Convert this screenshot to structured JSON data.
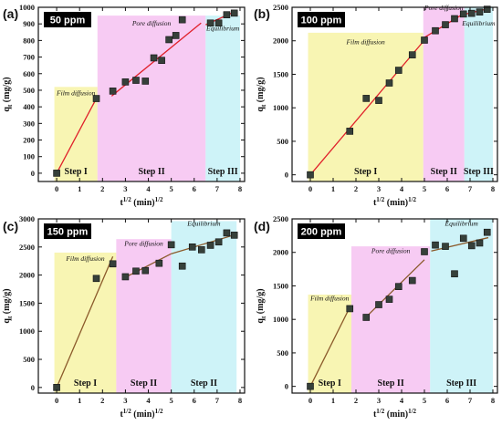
{
  "chart_data": [
    {
      "type": "scatter",
      "panel_label": "(a)",
      "conc_label": "50 ppm",
      "xlabel": "t",
      "xlabel_sup1": "1/2",
      "xlabel_unit": " (min)",
      "xlabel_sup2": "1/2",
      "ylabel": "q",
      "ylabel_sub": "t",
      "ylabel_unit": " (mg/g)",
      "xlim": [
        -0.8,
        8.2
      ],
      "ylim": [
        -50,
        1000
      ],
      "xticks": [
        0,
        1,
        2,
        3,
        4,
        5,
        6,
        7,
        8
      ],
      "yticks": [
        0,
        100,
        200,
        300,
        400,
        500,
        600,
        700,
        800,
        900,
        1000
      ],
      "regions": [
        {
          "x0": -0.1,
          "x1": 1.78,
          "y0": -50,
          "y1": 520,
          "color": "#f7f3a6",
          "step": "Step I",
          "note": "Film diffusion",
          "note_y": 470
        },
        {
          "x0": 1.78,
          "x1": 6.5,
          "y0": -50,
          "y1": 950,
          "color": "#f6c2f1",
          "step": "Step II",
          "note": "Pore diffusion",
          "note_y": 890
        },
        {
          "x0": 6.5,
          "x1": 8.0,
          "y0": -50,
          "y1": 950,
          "color": "#c6f1f7",
          "step": "Step III",
          "note": "Equilibrium",
          "note_y": 860
        }
      ],
      "points": [
        {
          "x": 0,
          "y": 0
        },
        {
          "x": 1.73,
          "y": 450
        },
        {
          "x": 2.45,
          "y": 495
        },
        {
          "x": 3.0,
          "y": 550
        },
        {
          "x": 3.46,
          "y": 560
        },
        {
          "x": 3.87,
          "y": 555
        },
        {
          "x": 4.24,
          "y": 695
        },
        {
          "x": 4.58,
          "y": 680
        },
        {
          "x": 4.9,
          "y": 805
        },
        {
          "x": 5.2,
          "y": 830
        },
        {
          "x": 5.48,
          "y": 925
        },
        {
          "x": 6.71,
          "y": 905
        },
        {
          "x": 7.07,
          "y": 905
        },
        {
          "x": 7.42,
          "y": 955
        },
        {
          "x": 7.75,
          "y": 965
        }
      ],
      "fit_lines": [
        {
          "x": [
            0,
            1.73
          ],
          "y": [
            0,
            450
          ]
        },
        {
          "x": [
            2.4,
            6.3
          ],
          "y": [
            465,
            905
          ]
        },
        {
          "x": [
            6.5,
            7.8
          ],
          "y": [
            895,
            975
          ]
        }
      ],
      "line_color": "#e0202a"
    },
    {
      "type": "scatter",
      "panel_label": "(b)",
      "conc_label": "100 ppm",
      "xlabel": "t",
      "xlabel_sup1": "1/2",
      "xlabel_unit": " (min)",
      "xlabel_sup2": "1/2",
      "ylabel": "q",
      "ylabel_sub": "t",
      "ylabel_unit": " (mg/g)",
      "xlim": [
        -0.8,
        8.2
      ],
      "ylim": [
        -100,
        2500
      ],
      "xticks": [
        0,
        1,
        2,
        3,
        4,
        5,
        6,
        7,
        8
      ],
      "yticks": [
        0,
        500,
        1000,
        1500,
        2000,
        2500
      ],
      "regions": [
        {
          "x0": -0.1,
          "x1": 4.95,
          "y0": -100,
          "y1": 2120,
          "color": "#f7f3a6",
          "step": "Step I",
          "note": "Film diffusion",
          "note_y": 1950
        },
        {
          "x0": 4.95,
          "x1": 6.75,
          "y0": -100,
          "y1": 2510,
          "color": "#f6c2f1",
          "step": "Step II",
          "note": "Pore diffusion",
          "note_y": 2460
        },
        {
          "x0": 6.75,
          "x1": 8.0,
          "y0": -100,
          "y1": 2510,
          "color": "#c6f1f7",
          "step": "Step III",
          "note": "Equilibrium",
          "note_y": 2230
        }
      ],
      "points": [
        {
          "x": 0,
          "y": 0
        },
        {
          "x": 1.73,
          "y": 650
        },
        {
          "x": 2.45,
          "y": 1140
        },
        {
          "x": 3.0,
          "y": 1110
        },
        {
          "x": 3.46,
          "y": 1370
        },
        {
          "x": 3.87,
          "y": 1560
        },
        {
          "x": 4.47,
          "y": 1790
        },
        {
          "x": 5.0,
          "y": 2010
        },
        {
          "x": 5.48,
          "y": 2150
        },
        {
          "x": 5.92,
          "y": 2240
        },
        {
          "x": 6.32,
          "y": 2330
        },
        {
          "x": 6.71,
          "y": 2400
        },
        {
          "x": 7.07,
          "y": 2410
        },
        {
          "x": 7.42,
          "y": 2430
        },
        {
          "x": 7.75,
          "y": 2470
        }
      ],
      "fit_lines": [
        {
          "x": [
            0,
            5.0
          ],
          "y": [
            0,
            2010
          ]
        },
        {
          "x": [
            4.95,
            6.7
          ],
          "y": [
            2040,
            2400
          ]
        },
        {
          "x": [
            6.7,
            7.8
          ],
          "y": [
            2390,
            2480
          ]
        }
      ],
      "line_color": "#e0202a"
    },
    {
      "type": "scatter",
      "panel_label": "(c)",
      "conc_label": "150 ppm",
      "xlabel": "t",
      "xlabel_sup1": "1/2",
      "xlabel_unit": " (min)",
      "xlabel_sup2": "1/2",
      "ylabel": "q",
      "ylabel_sub": "t",
      "ylabel_unit": " (mg/g)",
      "xlim": [
        -0.8,
        8.2
      ],
      "ylim": [
        -100,
        3000
      ],
      "xticks": [
        0,
        1,
        2,
        3,
        4,
        5,
        6,
        7,
        8
      ],
      "yticks": [
        0,
        500,
        1000,
        1500,
        2000,
        2500,
        3000
      ],
      "regions": [
        {
          "x0": -0.1,
          "x1": 2.6,
          "y0": -100,
          "y1": 2400,
          "color": "#f7f3a6",
          "step": "Step I",
          "note": "Film diffusion",
          "note_y": 2250
        },
        {
          "x0": 2.6,
          "x1": 5.0,
          "y0": -100,
          "y1": 2640,
          "color": "#f6c2f1",
          "step": "Step II",
          "note": "Pore diffusion",
          "note_y": 2520
        },
        {
          "x0": 5.0,
          "x1": 7.85,
          "y0": -100,
          "y1": 2960,
          "color": "#c6f1f7",
          "step": "Step II",
          "note": "Equilibrium",
          "note_y": 2880
        }
      ],
      "points": [
        {
          "x": 0,
          "y": 0
        },
        {
          "x": 1.73,
          "y": 1940
        },
        {
          "x": 2.45,
          "y": 2200
        },
        {
          "x": 3.0,
          "y": 1970
        },
        {
          "x": 3.46,
          "y": 2070
        },
        {
          "x": 3.87,
          "y": 2080
        },
        {
          "x": 4.47,
          "y": 2210
        },
        {
          "x": 5.0,
          "y": 2540
        },
        {
          "x": 5.48,
          "y": 2160
        },
        {
          "x": 5.92,
          "y": 2500
        },
        {
          "x": 6.32,
          "y": 2450
        },
        {
          "x": 6.71,
          "y": 2530
        },
        {
          "x": 7.07,
          "y": 2590
        },
        {
          "x": 7.42,
          "y": 2750
        },
        {
          "x": 7.75,
          "y": 2710
        }
      ],
      "fit_lines": [
        {
          "x": [
            0,
            2.45
          ],
          "y": [
            0,
            2330
          ]
        },
        {
          "x": [
            2.9,
            5.0
          ],
          "y": [
            1940,
            2380
          ]
        },
        {
          "x": [
            5.0,
            7.8
          ],
          "y": [
            2380,
            2720
          ]
        }
      ],
      "line_color": "#8b5a2b"
    },
    {
      "type": "scatter",
      "panel_label": "(d)",
      "conc_label": "200 ppm",
      "xlabel": "t",
      "xlabel_sup1": "1/2",
      "xlabel_unit": " (min)",
      "xlabel_sup2": "1/2",
      "ylabel": "q",
      "ylabel_sub": "t",
      "ylabel_unit": " (mg/g)",
      "xlim": [
        -0.8,
        8.2
      ],
      "ylim": [
        -100,
        2500
      ],
      "xticks": [
        0,
        1,
        2,
        3,
        4,
        5,
        6,
        7,
        8
      ],
      "yticks": [
        0,
        500,
        1000,
        1500,
        2000,
        2500
      ],
      "regions": [
        {
          "x0": -0.1,
          "x1": 1.8,
          "y0": -100,
          "y1": 1370,
          "color": "#f7f3a6",
          "step": "Step I",
          "note": "Film diffusion",
          "note_y": 1280
        },
        {
          "x0": 1.8,
          "x1": 5.25,
          "y0": -100,
          "y1": 2090,
          "color": "#f6c2f1",
          "step": "Step II",
          "note": "Pore diffusion",
          "note_y": 1990
        },
        {
          "x0": 5.25,
          "x1": 8.0,
          "y0": -100,
          "y1": 2510,
          "color": "#c6f1f7",
          "step": "Step III",
          "note": "Equilibrium",
          "note_y": 2400
        }
      ],
      "points": [
        {
          "x": 0,
          "y": 0
        },
        {
          "x": 1.73,
          "y": 1160
        },
        {
          "x": 2.45,
          "y": 1030
        },
        {
          "x": 3.0,
          "y": 1220
        },
        {
          "x": 3.46,
          "y": 1300
        },
        {
          "x": 3.87,
          "y": 1490
        },
        {
          "x": 4.47,
          "y": 1580
        },
        {
          "x": 5.0,
          "y": 2010
        },
        {
          "x": 5.48,
          "y": 2110
        },
        {
          "x": 5.92,
          "y": 2090
        },
        {
          "x": 6.32,
          "y": 1680
        },
        {
          "x": 6.71,
          "y": 2210
        },
        {
          "x": 7.07,
          "y": 2100
        },
        {
          "x": 7.42,
          "y": 2140
        },
        {
          "x": 7.75,
          "y": 2300
        }
      ],
      "fit_lines": [
        {
          "x": [
            0,
            1.73
          ],
          "y": [
            0,
            1180
          ]
        },
        {
          "x": [
            2.4,
            5.0
          ],
          "y": [
            1020,
            1890
          ]
        },
        {
          "x": [
            5.3,
            7.8
          ],
          "y": [
            2020,
            2220
          ]
        }
      ],
      "line_color": "#8b5a2b"
    }
  ],
  "style": {
    "marker_color": "#36403a",
    "marker_edge": "#111111"
  }
}
